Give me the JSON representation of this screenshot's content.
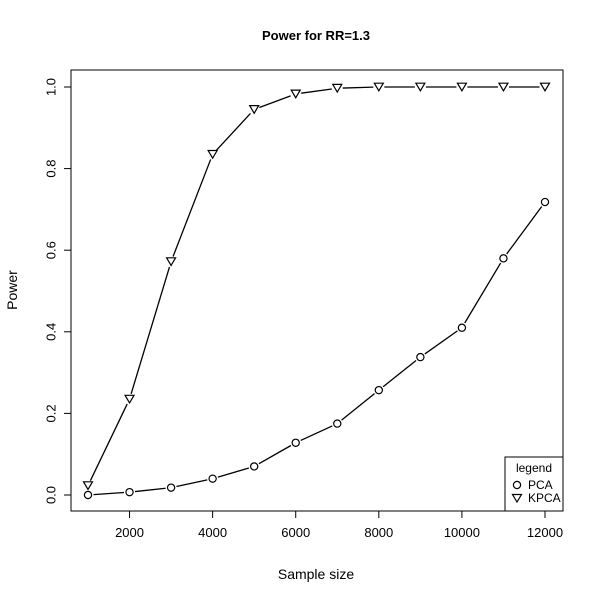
{
  "chart_data": {
    "type": "line",
    "title": "Power for RR=1.3",
    "xlabel": "Sample size",
    "ylabel": "Power",
    "xlim": [
      1000,
      12000
    ],
    "ylim": [
      0,
      1
    ],
    "x_ticks": [
      2000,
      4000,
      6000,
      8000,
      10000,
      12000
    ],
    "y_ticks": [
      0.0,
      0.2,
      0.4,
      0.6,
      0.8,
      1.0
    ],
    "x_tick_labels": [
      "2000",
      "4000",
      "6000",
      "8000",
      "10000",
      "12000"
    ],
    "y_tick_labels": [
      "0.0",
      "0.2",
      "0.4",
      "0.6",
      "0.8",
      "1.0"
    ],
    "x": [
      1000,
      2000,
      3000,
      4000,
      5000,
      6000,
      7000,
      8000,
      9000,
      10000,
      11000,
      12000
    ],
    "series": [
      {
        "name": "PCA",
        "marker": "circle",
        "values": [
          0.0,
          0.007,
          0.018,
          0.04,
          0.07,
          0.128,
          0.175,
          0.257,
          0.338,
          0.41,
          0.58,
          0.718
        ]
      },
      {
        "name": "KPCA",
        "marker": "triangle-down",
        "values": [
          0.023,
          0.235,
          0.572,
          0.835,
          0.945,
          0.983,
          0.997,
          1.0,
          1.0,
          1.0,
          1.0,
          1.0
        ]
      }
    ],
    "legend": {
      "title": "legend",
      "position": "bottom-right",
      "entries": [
        "PCA",
        "KPCA"
      ]
    },
    "grid": false
  }
}
